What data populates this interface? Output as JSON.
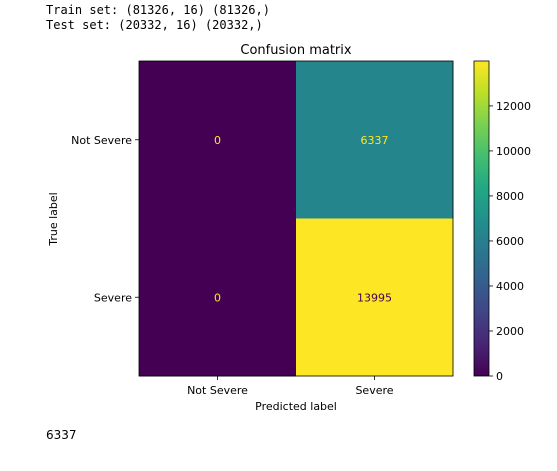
{
  "console": {
    "line1": "Train set: (81326, 16) (81326,)",
    "line2": "Test set: (20332, 16) (20332,)",
    "final_output": "6337"
  },
  "chart_data": {
    "type": "heatmap",
    "title": "Confusion matrix",
    "xlabel": "Predicted label",
    "ylabel": "True label",
    "x_categories": [
      "Not Severe",
      "Severe"
    ],
    "y_categories": [
      "Not Severe",
      "Severe"
    ],
    "values": [
      [
        0,
        6337
      ],
      [
        0,
        13995
      ]
    ],
    "value_labels": [
      [
        "0",
        "6337"
      ],
      [
        "0",
        "13995"
      ]
    ],
    "colormap": "viridis",
    "color_range": [
      0,
      13995
    ],
    "colorbar_ticks": [
      0,
      2000,
      4000,
      6000,
      8000,
      10000,
      12000
    ],
    "colorbar_tick_labels": [
      "0",
      "2000",
      "4000",
      "6000",
      "8000",
      "10000",
      "12000"
    ],
    "grid": false
  }
}
